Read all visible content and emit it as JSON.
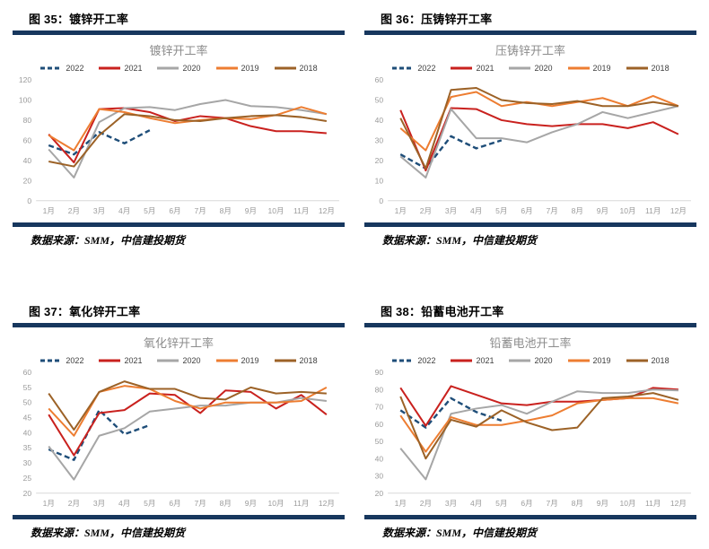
{
  "colors": {
    "divider_bar": "#17375E",
    "axis_text": "#9B9B9B",
    "axis_line": "#D9D9D9",
    "title_text": "#8C8C8C"
  },
  "x_labels": [
    "1月",
    "2月",
    "3月",
    "4月",
    "5月",
    "6月",
    "7月",
    "8月",
    "9月",
    "10月",
    "11月",
    "12月"
  ],
  "source_note": "数据来源：SMM，中信建投期货",
  "chart_data": [
    {
      "type": "line",
      "panel_header": "图 35：镀锌开工率",
      "title": "镀锌开工率",
      "xlabel": "",
      "ylabel": "",
      "ylim": [
        0,
        120
      ],
      "ytick_step": 20,
      "grid": false,
      "legend_position": "top",
      "categories": [
        "1月",
        "2月",
        "3月",
        "4月",
        "5月",
        "6月",
        "7月",
        "8月",
        "9月",
        "10月",
        "11月",
        "12月"
      ],
      "series": [
        {
          "name": "2022",
          "color": "#1F4E79",
          "dashed": true,
          "values": [
            55,
            46,
            68,
            57,
            70
          ]
        },
        {
          "name": "2021",
          "color": "#C9211E",
          "dashed": false,
          "values": [
            66,
            38,
            91,
            92,
            88,
            79,
            84,
            82,
            74,
            69,
            69,
            67
          ]
        },
        {
          "name": "2020",
          "color": "#A6A6A6",
          "dashed": false,
          "values": [
            51,
            23,
            78,
            92,
            93,
            90,
            96,
            100,
            94,
            93,
            90,
            86
          ]
        },
        {
          "name": "2019",
          "color": "#ED7D31",
          "dashed": false,
          "values": [
            65,
            50,
            91,
            88,
            82,
            77,
            80,
            82,
            81,
            85,
            93,
            86
          ]
        },
        {
          "name": "2018",
          "color": "#9C6227",
          "dashed": false,
          "values": [
            39,
            34,
            65,
            86,
            84,
            80,
            79,
            82,
            84,
            85,
            83,
            79
          ]
        }
      ]
    },
    {
      "type": "line",
      "panel_header": "图 36：压铸锌开工率",
      "title": "压铸锌开工率",
      "xlabel": "",
      "ylabel": "",
      "ylim": [
        0,
        60
      ],
      "ytick_step": 10,
      "grid": false,
      "legend_position": "top",
      "categories": [
        "1月",
        "2月",
        "3月",
        "4月",
        "5月",
        "6月",
        "7月",
        "8月",
        "9月",
        "10月",
        "11月",
        "12月"
      ],
      "series": [
        {
          "name": "2022",
          "color": "#1F4E79",
          "dashed": true,
          "values": [
            23,
            16,
            32,
            26,
            30
          ]
        },
        {
          "name": "2021",
          "color": "#C9211E",
          "dashed": false,
          "values": [
            45,
            15,
            46,
            45.5,
            40,
            38,
            37,
            38,
            38,
            36,
            39,
            33
          ]
        },
        {
          "name": "2020",
          "color": "#A6A6A6",
          "dashed": false,
          "values": [
            22,
            11.5,
            45.5,
            31,
            31,
            29,
            34,
            38,
            44,
            41,
            44,
            47
          ]
        },
        {
          "name": "2019",
          "color": "#ED7D31",
          "dashed": false,
          "values": [
            36,
            25,
            51.5,
            54,
            47,
            49,
            47,
            49,
            51,
            47,
            52,
            47
          ]
        },
        {
          "name": "2018",
          "color": "#9C6227",
          "dashed": false,
          "values": [
            41,
            16,
            55,
            56,
            50,
            48.5,
            48,
            49.5,
            47,
            47,
            49,
            47
          ]
        }
      ]
    },
    {
      "type": "line",
      "panel_header": "图 37：氧化锌开工率",
      "title": "氧化锌开工率",
      "xlabel": "",
      "ylabel": "",
      "ylim": [
        20,
        60
      ],
      "ytick_step": 5,
      "grid": false,
      "legend_position": "top",
      "categories": [
        "1月",
        "2月",
        "3月",
        "4月",
        "5月",
        "6月",
        "7月",
        "8月",
        "9月",
        "10月",
        "11月",
        "12月"
      ],
      "series": [
        {
          "name": "2022",
          "color": "#1F4E79",
          "dashed": true,
          "values": [
            34.5,
            31,
            47.5,
            39.5,
            42.5
          ]
        },
        {
          "name": "2021",
          "color": "#C9211E",
          "dashed": false,
          "values": [
            46,
            32.5,
            46.5,
            47.5,
            53,
            52.5,
            46.5,
            54,
            53.5,
            48,
            52.5,
            46
          ]
        },
        {
          "name": "2020",
          "color": "#A6A6A6",
          "dashed": false,
          "values": [
            35.5,
            24.5,
            39,
            41.5,
            47,
            48,
            49,
            49,
            50,
            50,
            51.5,
            50.5
          ]
        },
        {
          "name": "2019",
          "color": "#ED7D31",
          "dashed": false,
          "values": [
            48,
            39,
            53.5,
            55.5,
            54.5,
            50.5,
            48,
            50,
            50,
            50,
            50.5,
            55
          ]
        },
        {
          "name": "2018",
          "color": "#9C6227",
          "dashed": false,
          "values": [
            53,
            41,
            53.5,
            57,
            54.5,
            54.5,
            51.5,
            51,
            55,
            53,
            53.5,
            53
          ]
        }
      ]
    },
    {
      "type": "line",
      "panel_header": "图 38：铅蓄电池开工率",
      "title": "铅蓄电池开工率",
      "xlabel": "",
      "ylabel": "",
      "ylim": [
        20,
        90
      ],
      "ytick_step": 10,
      "grid": false,
      "legend_position": "top",
      "categories": [
        "1月",
        "2月",
        "3月",
        "4月",
        "5月",
        "6月",
        "7月",
        "8月",
        "9月",
        "10月",
        "11月",
        "12月"
      ],
      "series": [
        {
          "name": "2022",
          "color": "#1F4E79",
          "dashed": true,
          "values": [
            68,
            58,
            75,
            67,
            62
          ]
        },
        {
          "name": "2021",
          "color": "#C9211E",
          "dashed": false,
          "values": [
            81,
            59,
            82,
            77,
            72,
            71,
            73,
            73,
            74,
            75,
            81,
            80
          ]
        },
        {
          "name": "2020",
          "color": "#A6A6A6",
          "dashed": false,
          "values": [
            46,
            28,
            66,
            69,
            71,
            66,
            73,
            79,
            78,
            78,
            80,
            79.5
          ]
        },
        {
          "name": "2019",
          "color": "#ED7D31",
          "dashed": false,
          "values": [
            65,
            44,
            64,
            59.5,
            59.5,
            62,
            65,
            72,
            74,
            75,
            75,
            72
          ]
        },
        {
          "name": "2018",
          "color": "#9C6227",
          "dashed": false,
          "values": [
            76,
            40,
            62.5,
            58.5,
            68,
            61,
            56.5,
            58,
            75,
            76,
            78,
            74
          ]
        }
      ]
    }
  ]
}
